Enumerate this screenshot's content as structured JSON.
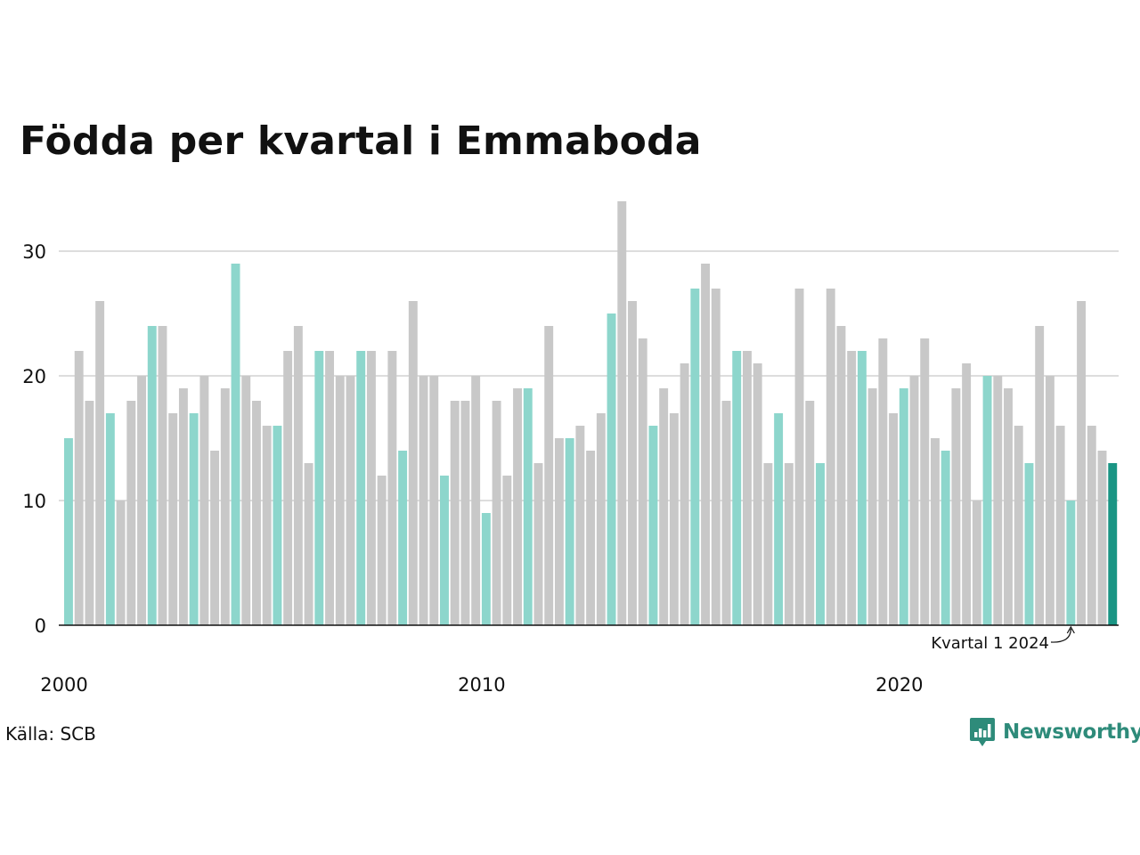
{
  "chart_data": {
    "type": "bar",
    "title": "Födda per kvartal i Emmaboda",
    "xlabel": "",
    "ylabel": "",
    "ylim": [
      0,
      34
    ],
    "yticks": [
      0,
      10,
      20,
      30
    ],
    "xtick_labels": [
      "2000",
      "2010",
      "2020"
    ],
    "grid": true,
    "quarter_1_highlighted": true,
    "values": [
      15,
      22,
      18,
      26,
      17,
      10,
      18,
      20,
      24,
      24,
      17,
      19,
      17,
      20,
      14,
      19,
      29,
      20,
      18,
      16,
      16,
      22,
      24,
      13,
      22,
      22,
      20,
      20,
      22,
      22,
      12,
      22,
      14,
      26,
      20,
      20,
      12,
      18,
      18,
      20,
      9,
      18,
      12,
      19,
      19,
      13,
      24,
      15,
      15,
      16,
      14,
      17,
      25,
      34,
      26,
      23,
      16,
      19,
      17,
      21,
      27,
      29,
      27,
      18,
      22,
      22,
      21,
      13,
      17,
      13,
      27,
      18,
      13,
      27,
      24,
      22,
      22,
      19,
      23,
      17,
      19,
      20,
      23,
      15,
      14,
      19,
      21,
      10,
      20,
      20,
      19,
      16,
      13,
      24,
      20,
      16,
      10,
      26,
      16,
      14,
      13
    ],
    "annotation": "Kvartal 1 2024"
  },
  "colors": {
    "q1": "#8dd6cc",
    "other": "#c8c8c8",
    "latest": "#1a9584",
    "grid": "#dddddd",
    "axis": "#111111",
    "brand": "#2e8b7a"
  },
  "source": "Källa: SCB",
  "brand": "Newsworthy",
  "brand_icon": "newsworthy-chart-logo-icon"
}
